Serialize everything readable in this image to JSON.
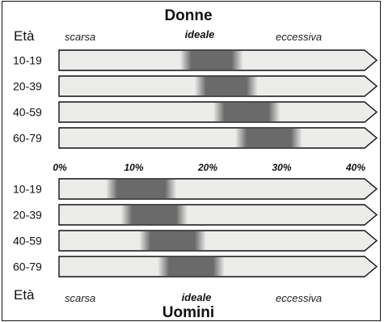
{
  "axis": {
    "ticks": [
      "0%",
      "10%",
      "20%",
      "30%",
      "40%"
    ],
    "tick_values": [
      0,
      10,
      20,
      30,
      40
    ]
  },
  "labels": {
    "eta": "Età",
    "low": "scarsa",
    "ideal": "ideale",
    "high": "eccessiva"
  },
  "colors": {
    "bar_fill": "#ececea",
    "ideal_band": "#6a6a6a",
    "outline": "#111111"
  },
  "panels": [
    {
      "title": "Donne",
      "rows": [
        {
          "age": "10-19",
          "ideal_from": 17,
          "ideal_to": 24
        },
        {
          "age": "20-39",
          "ideal_from": 19,
          "ideal_to": 26
        },
        {
          "age": "40-59",
          "ideal_from": 21.5,
          "ideal_to": 29
        },
        {
          "age": "60-79",
          "ideal_from": 24.5,
          "ideal_to": 32
        }
      ]
    },
    {
      "title": "Uomini",
      "rows": [
        {
          "age": "10-19",
          "ideal_from": 7,
          "ideal_to": 15
        },
        {
          "age": "20-39",
          "ideal_from": 9,
          "ideal_to": 16.5
        },
        {
          "age": "40-59",
          "ideal_from": 11.5,
          "ideal_to": 19
        },
        {
          "age": "60-79",
          "ideal_from": 14,
          "ideal_to": 21.5
        }
      ]
    }
  ]
}
